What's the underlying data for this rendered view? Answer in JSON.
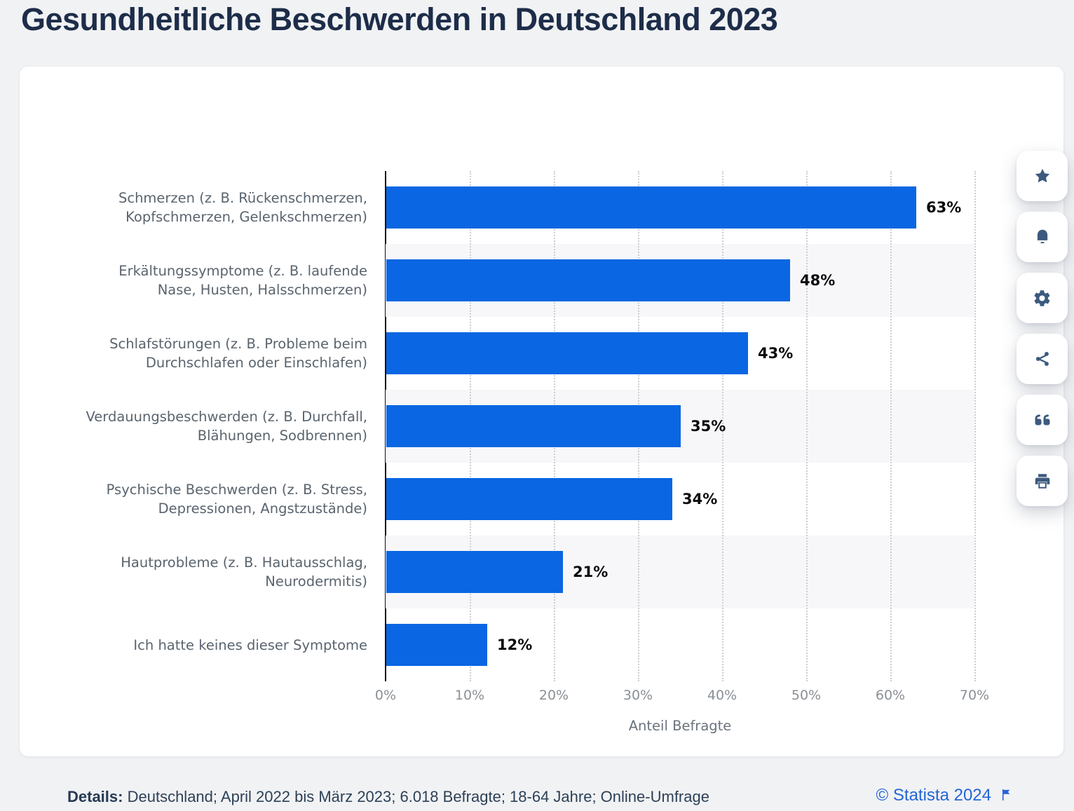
{
  "page_title": "Gesundheitliche Beschwerden in Deutschland 2023",
  "chart_data": {
    "type": "bar",
    "orientation": "horizontal",
    "categories": [
      "Schmerzen (z. B. Rückenschmerzen,\nKopfschmerzen, Gelenkschmerzen)",
      "Erkältungssymptome (z. B. laufende\nNase, Husten, Halsschmerzen)",
      "Schlafstörungen (z. B. Probleme beim\nDurchschlafen oder Einschlafen)",
      "Verdauungsbeschwerden (z. B. Durchfall,\nBlähungen, Sodbrennen)",
      "Psychische Beschwerden (z. B. Stress,\nDepressionen, Angstzustände)",
      "Hautprobleme (z. B. Hautausschlag,\nNeurodermitis)",
      "Ich hatte keines dieser Symptome"
    ],
    "values": [
      63,
      48,
      43,
      35,
      34,
      21,
      12
    ],
    "value_labels": [
      "63%",
      "48%",
      "43%",
      "35%",
      "34%",
      "21%",
      "12%"
    ],
    "x_ticks": [
      "0%",
      "10%",
      "20%",
      "30%",
      "40%",
      "50%",
      "60%",
      "70%"
    ],
    "xlim": [
      0,
      70
    ],
    "xlabel": "Anteil Befragte",
    "ylabel": "",
    "grid": "vertical dotted gridlines every 10%",
    "row_banding": "alternating rows shaded",
    "bar_color": "#0a66e2",
    "band_color": "#f7f7f9",
    "legend": "none"
  },
  "toolbar": {
    "actions": [
      {
        "name": "favorite",
        "icon": "star-icon"
      },
      {
        "name": "notifications",
        "icon": "bell-icon"
      },
      {
        "name": "settings",
        "icon": "gear-icon"
      },
      {
        "name": "share",
        "icon": "share-icon"
      },
      {
        "name": "cite",
        "icon": "quote-icon"
      },
      {
        "name": "print",
        "icon": "printer-icon"
      }
    ],
    "icon_color": "#3c5a7d"
  },
  "footer": {
    "details_label": "Details:",
    "details_text": " Deutschland; April 2022 bis März 2023; 6.018 Befragte; 18-64 Jahre; Online-Umfrage",
    "copyright": "© Statista 2024"
  }
}
